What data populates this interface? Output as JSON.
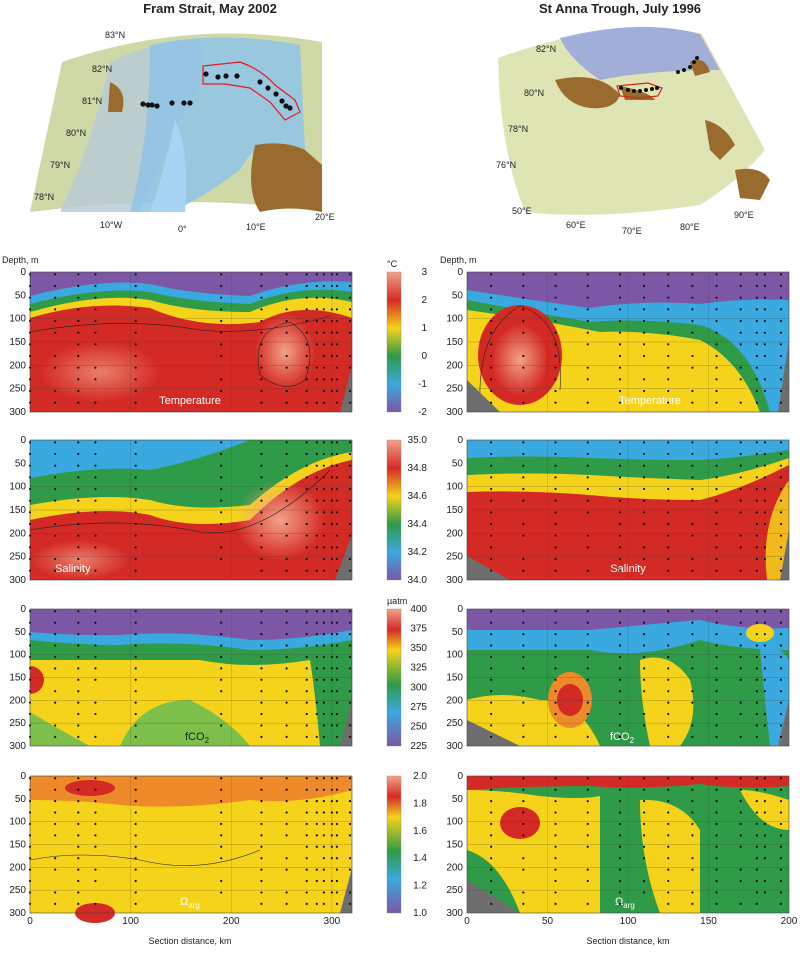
{
  "titles": {
    "left": "Fram Strait, May 2002",
    "right": "St Anna Trough, July 1996"
  },
  "colors": {
    "purple": "#7b57a5",
    "blue": "#3aa9e0",
    "green": "#2f9a47",
    "yellow": "#f5d31a",
    "orange": "#ef8a2a",
    "red": "#d42a25",
    "salmon": "#f3a288",
    "land": "#9a6b2e",
    "gray": "#6e6e6e"
  },
  "maps": {
    "left": {
      "lat_labels": [
        "83°N",
        "82°N",
        "81°N",
        "80°N",
        "79°N",
        "78°N"
      ],
      "lon_labels": [
        "10°W",
        "0°",
        "10°E",
        "20°E"
      ]
    },
    "right": {
      "lat_labels": [
        "82°N",
        "80°N",
        "78°N",
        "76°N"
      ],
      "lon_labels": [
        "50°E",
        "60°E",
        "70°E",
        "80°E",
        "90°E"
      ]
    }
  },
  "axes": {
    "depth_label": "Depth, m",
    "depth_ticks": [
      "0",
      "50",
      "100",
      "150",
      "200",
      "250",
      "300"
    ],
    "xlabel": "Section distance, km",
    "left_x_ticks": [
      "0",
      "100",
      "200",
      "300"
    ],
    "right_x_ticks": [
      "0",
      "50",
      "100",
      "150",
      "200"
    ]
  },
  "colorbars": [
    {
      "unit": "°C",
      "ticks": [
        "3",
        "2",
        "1",
        "0",
        "-1",
        "-2"
      ]
    },
    {
      "unit": "",
      "ticks": [
        "35.0",
        "34.8",
        "34.6",
        "34.4",
        "34.2",
        "34.0"
      ]
    },
    {
      "unit": "µatm",
      "ticks": [
        "400",
        "375",
        "350",
        "325",
        "300",
        "275",
        "250",
        "225"
      ]
    },
    {
      "unit": "",
      "ticks": [
        "2.0",
        "1.8",
        "1.6",
        "1.4",
        "1.2",
        "1.0"
      ]
    }
  ],
  "panel_labels": {
    "temperature": "Temperature",
    "salinity": "Salinity",
    "fco2": "fCO",
    "fco2_sub": "2",
    "omega": "Ω",
    "omega_sub": "arg"
  },
  "chart_data": [
    {
      "type": "heatmap",
      "title": "Temperature",
      "section": "Fram Strait, May 2002",
      "xlabel": "Section distance, km",
      "ylabel": "Depth, m",
      "xlim": [
        0,
        320
      ],
      "ylim": [
        300,
        0
      ],
      "colorbar": {
        "unit": "°C",
        "range": [
          -2,
          3
        ]
      },
      "contours": [
        -1.5,
        -0.5,
        0.5,
        1.5,
        2,
        2.5
      ],
      "layers": [
        {
          "upper_depth_m": 0,
          "lower_depth_m": 60,
          "value": -1.6
        },
        {
          "upper_depth_m": 60,
          "lower_depth_m": 100,
          "value": 0.0
        },
        {
          "upper_depth_m": 100,
          "lower_depth_m": 300,
          "value": 2.3
        }
      ]
    },
    {
      "type": "heatmap",
      "title": "Temperature",
      "section": "St Anna Trough, July 1996",
      "xlabel": "Section distance, km",
      "ylabel": "Depth, m",
      "xlim": [
        0,
        200
      ],
      "ylim": [
        300,
        0
      ],
      "colorbar": {
        "unit": "°C",
        "range": [
          -2,
          3
        ]
      },
      "layers": [
        {
          "upper_depth_m": 0,
          "lower_depth_m": 60,
          "value": -1.7
        },
        {
          "upper_depth_m": 60,
          "lower_depth_m": 110,
          "value": -0.5
        },
        {
          "upper_depth_m": 110,
          "lower_depth_m": 300,
          "value": 1.5
        }
      ],
      "features": [
        {
          "x_km": 25,
          "depth_m": 175,
          "value": 3.0
        }
      ]
    },
    {
      "type": "heatmap",
      "title": "Salinity",
      "section": "Fram Strait, May 2002",
      "xlim": [
        0,
        320
      ],
      "ylim": [
        300,
        0
      ],
      "colorbar": {
        "unit": "",
        "range": [
          34.0,
          35.0
        ]
      },
      "contours": [
        34.4,
        34.6,
        34.7,
        34.8,
        34.9
      ],
      "layers": [
        {
          "upper_depth_m": 0,
          "lower_depth_m": 60,
          "value": 34.3
        },
        {
          "upper_depth_m": 60,
          "lower_depth_m": 120,
          "value": 34.6
        },
        {
          "upper_depth_m": 120,
          "lower_depth_m": 300,
          "value": 34.95
        }
      ]
    },
    {
      "type": "heatmap",
      "title": "Salinity",
      "section": "St Anna Trough, July 1996",
      "xlim": [
        0,
        200
      ],
      "ylim": [
        300,
        0
      ],
      "colorbar": {
        "unit": "",
        "range": [
          34.0,
          35.0
        ]
      },
      "contours": [
        34.4,
        34.6,
        34.7,
        34.75
      ],
      "layers": [
        {
          "upper_depth_m": 0,
          "lower_depth_m": 40,
          "value": 34.2
        },
        {
          "upper_depth_m": 40,
          "lower_depth_m": 90,
          "value": 34.6
        },
        {
          "upper_depth_m": 90,
          "lower_depth_m": 300,
          "value": 34.9
        }
      ]
    },
    {
      "type": "heatmap",
      "title": "fCO2",
      "section": "Fram Strait, May 2002",
      "xlim": [
        0,
        320
      ],
      "ylim": [
        300,
        0
      ],
      "colorbar": {
        "unit": "µatm",
        "range": [
          225,
          400
        ]
      },
      "contours": [
        275,
        300,
        325,
        350
      ],
      "layers": [
        {
          "upper_depth_m": 0,
          "lower_depth_m": 80,
          "value": 260
        },
        {
          "upper_depth_m": 80,
          "lower_depth_m": 130,
          "value": 310
        },
        {
          "upper_depth_m": 130,
          "lower_depth_m": 300,
          "value": 335
        }
      ],
      "features": [
        {
          "x_km": 0,
          "depth_m": 150,
          "value": 375
        }
      ]
    },
    {
      "type": "heatmap",
      "title": "fCO2",
      "section": "St Anna Trough, July 1996",
      "xlim": [
        0,
        200
      ],
      "ylim": [
        300,
        0
      ],
      "colorbar": {
        "unit": "µatm",
        "range": [
          225,
          400
        ]
      },
      "contours": [
        275,
        300,
        325,
        350,
        375
      ],
      "layers": [
        {
          "upper_depth_m": 0,
          "lower_depth_m": 60,
          "value": 255
        },
        {
          "upper_depth_m": 60,
          "lower_depth_m": 110,
          "value": 300
        },
        {
          "upper_depth_m": 110,
          "lower_depth_m": 300,
          "value": 320
        }
      ],
      "features": [
        {
          "x_km": 90,
          "depth_m": 195,
          "value": 375
        }
      ]
    },
    {
      "type": "heatmap",
      "title": "Ωarg",
      "section": "Fram Strait, May 2002",
      "xlim": [
        0,
        320
      ],
      "ylim": [
        300,
        0
      ],
      "colorbar": {
        "unit": "",
        "range": [
          1.0,
          2.0
        ]
      },
      "contours": [
        1.5,
        1.6,
        1.7,
        1.8
      ],
      "layers": [
        {
          "upper_depth_m": 0,
          "lower_depth_m": 80,
          "value": 1.8
        },
        {
          "upper_depth_m": 80,
          "lower_depth_m": 300,
          "value": 1.7
        }
      ],
      "features": [
        {
          "x_km": 70,
          "depth_m": 300,
          "value": 1.9
        }
      ]
    },
    {
      "type": "heatmap",
      "title": "Ωarg",
      "section": "St Anna Trough, July 1996",
      "xlim": [
        0,
        200
      ],
      "ylim": [
        300,
        0
      ],
      "colorbar": {
        "unit": "",
        "range": [
          1.0,
          2.0
        ]
      },
      "contours": [
        1.4,
        1.5,
        1.6,
        1.8
      ],
      "layers": [
        {
          "upper_depth_m": 0,
          "lower_depth_m": 300,
          "value": 1.55
        }
      ],
      "features": [
        {
          "x_km": 35,
          "depth_m": 100,
          "value": 1.9
        }
      ]
    }
  ]
}
